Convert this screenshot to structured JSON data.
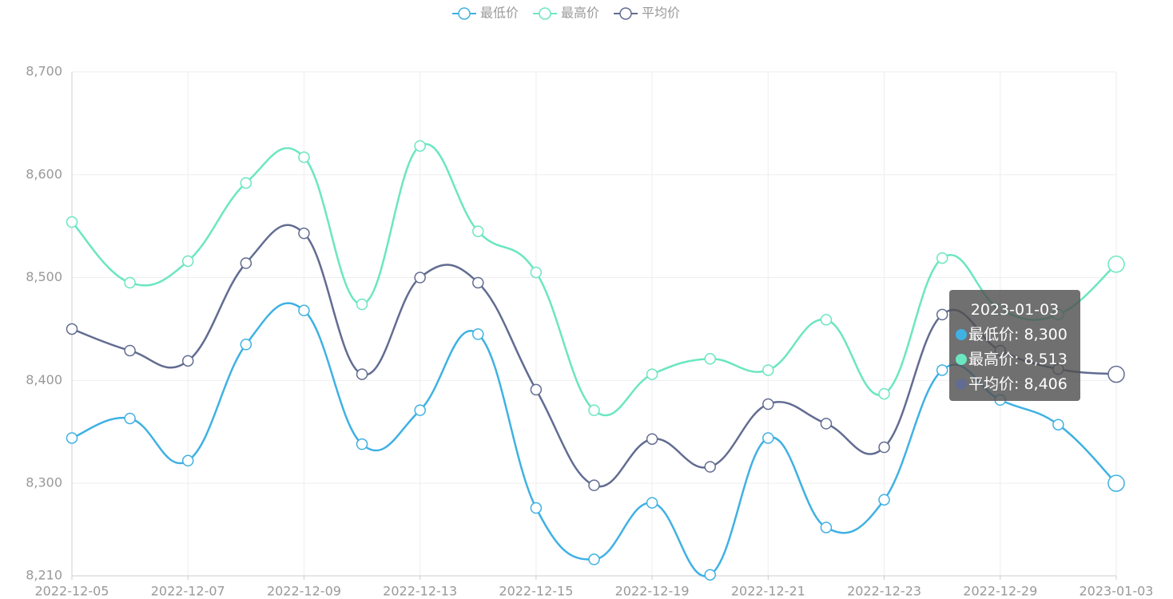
{
  "chart_data": {
    "type": "line",
    "categories": [
      "2022-12-05",
      null,
      "2022-12-07",
      null,
      "2022-12-09",
      null,
      "2022-12-13",
      null,
      "2022-12-15",
      null,
      "2022-12-19",
      null,
      "2022-12-21",
      null,
      "2022-12-23",
      null,
      "2022-12-29",
      null,
      "2023-01-03"
    ],
    "series": [
      {
        "name": "最低价",
        "color": "#3fb1e3",
        "values": [
          8344,
          8363,
          8322,
          8435,
          8468,
          8338,
          8371,
          8445,
          8276,
          8226,
          8281,
          8211,
          8344,
          8257,
          8284,
          8410,
          8381,
          8357,
          8300
        ]
      },
      {
        "name": "最高价",
        "color": "#6be6c1",
        "values": [
          8554,
          8495,
          8516,
          8592,
          8617,
          8474,
          8628,
          8545,
          8505,
          8371,
          8406,
          8421,
          8410,
          8459,
          8387,
          8519,
          8469,
          8464,
          8513
        ]
      },
      {
        "name": "平均价",
        "color": "#626c91",
        "values": [
          8450,
          8429,
          8419,
          8514,
          8543,
          8406,
          8500,
          8495,
          8391,
          8298,
          8343,
          8316,
          8377,
          8358,
          8335,
          8464,
          8429,
          8411,
          8406
        ]
      }
    ],
    "ylim": [
      8210,
      8700
    ],
    "yticks": [
      {
        "value": 8210,
        "label": "8,210"
      },
      {
        "value": 8300,
        "label": "8,300"
      },
      {
        "value": 8400,
        "label": "8,400"
      },
      {
        "value": 8500,
        "label": "8,500"
      },
      {
        "value": 8600,
        "label": "8,600"
      },
      {
        "value": 8700,
        "label": "8,700"
      }
    ],
    "grid": true,
    "legend": "top",
    "tooltip": {
      "items": [
        "最低价: 8,300",
        "最高价: 8,513",
        "平均价: 8,406"
      ]
    }
  }
}
